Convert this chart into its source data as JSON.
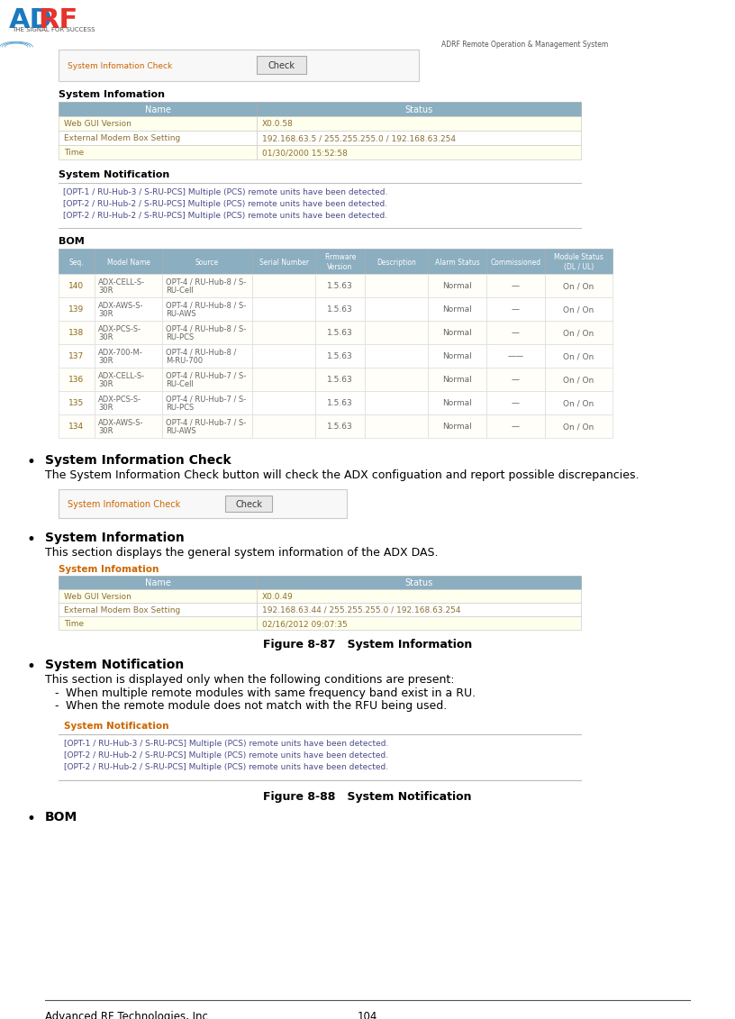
{
  "page_width": 8.16,
  "page_height": 11.31,
  "bg_color": "#ffffff",
  "header_right": "ADRF Remote Operation & Management System",
  "footer_left": "Advanced RF Technologies, Inc.",
  "footer_center": "104",
  "top_screenshot": {
    "label": "System Infomation Check",
    "button": "Check"
  },
  "sys_info_table_top": {
    "title": "System Infomation",
    "header": [
      "Name",
      "Status"
    ],
    "rows": [
      [
        "Web GUI Version",
        "X0.0.58"
      ],
      [
        "External Modem Box Setting",
        "192.168.63.5 / 255.255.255.0 / 192.168.63.254"
      ],
      [
        "Time",
        "01/30/2000 15:52:58"
      ]
    ]
  },
  "sys_notification_top": {
    "title": "System Notification",
    "lines": [
      "[OPT-1 / RU-Hub-3 / S-RU-PCS] Multiple (PCS) remote units have been detected.",
      "[OPT-2 / RU-Hub-2 / S-RU-PCS] Multiple (PCS) remote units have been detected.",
      "[OPT-2 / RU-Hub-2 / S-RU-PCS] Multiple (PCS) remote units have been detected."
    ],
    "text_color": "#4a4a8a"
  },
  "bom_table": {
    "title": "BOM",
    "header": [
      "Seq.",
      "Model Name",
      "Source",
      "Serial Number",
      "Firmware\nVersion",
      "Description",
      "Alarm Status",
      "Commissioned",
      "Module Status\n(DL / UL)"
    ],
    "rows": [
      [
        "140",
        "ADX-CELL-S-\n30R",
        "OPT-4 / RU-Hub-8 / S-\nRU-Cell",
        "",
        "1.5.63",
        "",
        "Normal",
        "—",
        "On / On"
      ],
      [
        "139",
        "ADX-AWS-S-\n30R",
        "OPT-4 / RU-Hub-8 / S-\nRU-AWS",
        "",
        "1.5.63",
        "",
        "Normal",
        "—",
        "On / On"
      ],
      [
        "138",
        "ADX-PCS-S-\n30R",
        "OPT-4 / RU-Hub-8 / S-\nRU-PCS",
        "",
        "1.5.63",
        "",
        "Normal",
        "—",
        "On / On"
      ],
      [
        "137",
        "ADX-700-M-\n30R",
        "OPT-4 / RU-Hub-8 /\nM-RU-700",
        "",
        "1.5.63",
        "",
        "Normal",
        "——",
        "On / On"
      ],
      [
        "136",
        "ADX-CELL-S-\n30R",
        "OPT-4 / RU-Hub-7 / S-\nRU-Cell",
        "",
        "1.5.63",
        "",
        "Normal",
        "—",
        "On / On"
      ],
      [
        "135",
        "ADX-PCS-S-\n30R",
        "OPT-4 / RU-Hub-7 / S-\nRU-PCS",
        "",
        "1.5.63",
        "",
        "Normal",
        "—",
        "On / On"
      ],
      [
        "134",
        "ADX-AWS-S-\n30R",
        "OPT-4 / RU-Hub-7 / S-\nRU-AWS",
        "",
        "1.5.63",
        "",
        "Normal",
        "—",
        "On / On"
      ]
    ],
    "seq_fg": "#8b6914",
    "cell_fg": "#666666"
  },
  "bullets": [
    {
      "title": "System Information Check",
      "body": "The System Information Check button will check the ADX configuation and report possible discrepancies.",
      "screenshot_label": "System Infomation Check",
      "screenshot_button": "Check"
    },
    {
      "title": "System Information",
      "body": "This section displays the general system information of the ADX DAS.",
      "figure_label": "Figure 8-87   System Information",
      "sys_info": {
        "title": "System Infomation",
        "header": [
          "Name",
          "Status"
        ],
        "rows": [
          [
            "Web GUI Version",
            "X0.0.49"
          ],
          [
            "External Modem Box Setting",
            "192.168.63.44 / 255.255.255.0 / 192.168.63.254"
          ],
          [
            "Time",
            "02/16/2012 09:07:35"
          ]
        ]
      }
    },
    {
      "title": "System Notification",
      "body": "This section is displayed only when the following conditions are present:",
      "conditions": [
        "When multiple remote modules with same frequency band exist in a RU.",
        "When the remote module does not match with the RFU being used."
      ],
      "figure_label": "Figure 8-88   System Notification",
      "notification": {
        "title": "System Notification",
        "lines": [
          "[OPT-1 / RU-Hub-3 / S-RU-PCS] Multiple (PCS) remote units have been detected.",
          "[OPT-2 / RU-Hub-2 / S-RU-PCS] Multiple (PCS) remote units have been detected.",
          "[OPT-2 / RU-Hub-2 / S-RU-PCS] Multiple (PCS) remote units have been detected."
        ]
      }
    },
    {
      "title": "BOM",
      "body": null
    }
  ],
  "colors": {
    "table_header_bg": "#8baec0",
    "table_header_fg": "#ffffff",
    "table_row_odd": "#ffffee",
    "table_row_even": "#ffffff",
    "table_cell_fg": "#8b7030",
    "notification_text": "#4a4a8a",
    "notification_title": "#cc6600",
    "screenshot_bg": "#f8f8f8",
    "screenshot_border": "#cccccc",
    "button_bg": "#e8e8e8",
    "button_border": "#aaaaaa"
  }
}
